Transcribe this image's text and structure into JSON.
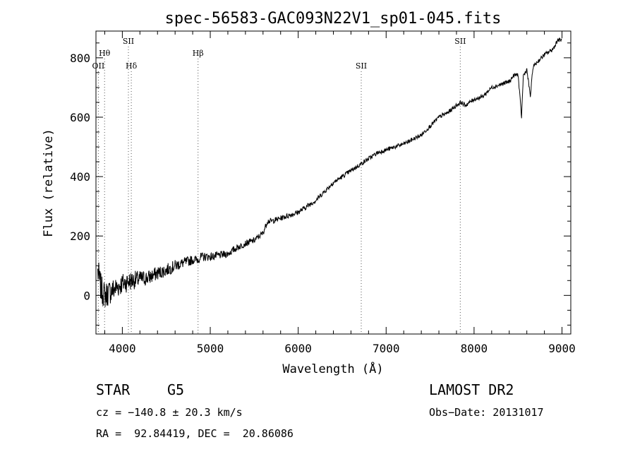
{
  "chart_data": {
    "type": "line",
    "title": "spec-56583-GAC093N22V1_sp01-045.fits",
    "xlabel": "Wavelength (Å)",
    "ylabel": "Flux (relative)",
    "xlim": [
      3700,
      9100
    ],
    "ylim": [
      -130,
      890
    ],
    "xticks": [
      "4000",
      "5000",
      "6000",
      "7000",
      "8000",
      "9000"
    ],
    "yticks": [
      "0",
      "200",
      "400",
      "600",
      "800"
    ],
    "grid": false,
    "lines": [
      {
        "label": "OII",
        "wave": 3727,
        "row": 3
      },
      {
        "label": "Hθ",
        "wave": 3798,
        "row": 2
      },
      {
        "label": "SII",
        "wave": 4069,
        "row": 1
      },
      {
        "label": "Hδ",
        "wave": 4102,
        "row": 3
      },
      {
        "label": "Hβ",
        "wave": 4861,
        "row": 2
      },
      {
        "label": "SII",
        "wave": 6717,
        "row": 3
      },
      {
        "label": "SII",
        "wave": 7843,
        "row": 1
      }
    ],
    "series": [
      {
        "x": [
          3720,
          3760,
          3800,
          3850,
          3900,
          3950,
          4000,
          4050,
          4100,
          4200,
          4300,
          4400,
          4500,
          4600,
          4700,
          4800,
          4850,
          4900,
          5000,
          5100,
          5200,
          5300,
          5400,
          5500,
          5600,
          5650,
          5700,
          5800,
          5900,
          6000,
          6100,
          6200,
          6300,
          6400,
          6500,
          6600,
          6700,
          6800,
          6900,
          7000,
          7100,
          7200,
          7300,
          7400,
          7500,
          7600,
          7700,
          7800,
          7850,
          7900,
          8000,
          8100,
          8200,
          8300,
          8400,
          8450,
          8500,
          8540,
          8560,
          8600,
          8640,
          8670,
          8700,
          8800,
          8900,
          8950,
          9000
        ],
        "y": [
          80,
          20,
          0,
          10,
          20,
          30,
          40,
          45,
          50,
          55,
          60,
          75,
          85,
          100,
          110,
          120,
          120,
          130,
          130,
          135,
          140,
          160,
          175,
          185,
          210,
          250,
          250,
          260,
          270,
          280,
          300,
          320,
          350,
          380,
          400,
          420,
          440,
          460,
          480,
          490,
          500,
          510,
          525,
          540,
          570,
          600,
          615,
          640,
          650,
          640,
          660,
          670,
          700,
          710,
          720,
          740,
          745,
          600,
          740,
          760,
          670,
          770,
          780,
          810,
          830,
          860,
          860
        ]
      }
    ]
  },
  "info": {
    "object_type": "STAR",
    "subclass": "G5",
    "survey": "LAMOST DR2",
    "cz": "cz = −140.8 ± 20.3 km/s",
    "obs_date": "Obs−Date: 20131017",
    "coords": "RA =  92.84419, DEC =  20.86086"
  }
}
